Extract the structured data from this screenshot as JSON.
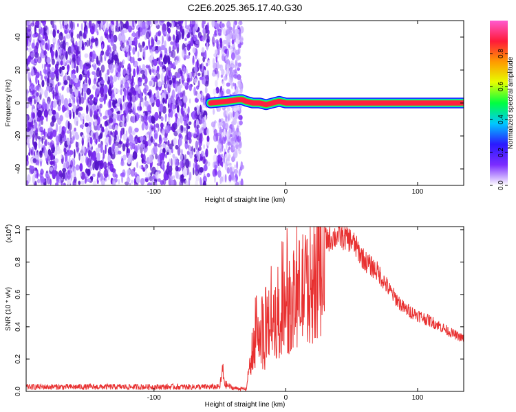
{
  "title": "C2E6.2025.365.17.40.G30",
  "chart_data": [
    {
      "type": "heatmap",
      "xlabel": "Height of straight line (km)",
      "ylabel": "Frequency (Hz)",
      "xlim": [
        -197,
        135
      ],
      "ylim": [
        -50,
        50
      ],
      "xticks": [
        -100,
        0,
        100
      ],
      "xtick_labels": [
        "-100",
        "0",
        "100"
      ],
      "yticks": [
        -40,
        -20,
        0,
        20,
        40
      ],
      "ytick_labels": [
        "-40",
        "-20",
        "0",
        "20",
        "40"
      ],
      "colorbar": {
        "label": "Normalized spectral amplitude",
        "range": [
          0,
          1
        ],
        "ticks": [
          0.0,
          0.2,
          0.4,
          0.6,
          0.8
        ],
        "tick_labels": [
          "0.0",
          "0.2",
          "0.4",
          "0.6",
          "0.8"
        ],
        "colors": [
          "#ffffff",
          "#7b2cff",
          "#2a1aff",
          "#00c8ff",
          "#00ff40",
          "#e6ff00",
          "#ff9a00",
          "#ff1a3a",
          "#ff5ad0"
        ]
      },
      "features": {
        "noise_region_km": [
          -197,
          -33
        ],
        "gap_km": [
          -58,
          -55
        ],
        "noise_color": "#6a1be0",
        "signal_trace": [
          [
            -57,
            0
          ],
          [
            -45,
            1
          ],
          [
            -36,
            2
          ],
          [
            -33,
            2
          ],
          [
            -30,
            1
          ],
          [
            -25,
            0
          ],
          [
            -20,
            0
          ],
          [
            -15,
            -1
          ],
          [
            -10,
            0
          ],
          [
            -5,
            1
          ],
          [
            0,
            0
          ],
          [
            135,
            0
          ]
        ],
        "line_band_hz": [
          -2,
          2
        ]
      }
    },
    {
      "type": "line",
      "xlabel": "Height of straight line (km)",
      "ylabel": "SNR (10 * v/v)",
      "yscale_label": "(x10",
      "yscale_exp": "4",
      "yscale_close": ")",
      "xlim": [
        -197,
        135
      ],
      "ylim": [
        0,
        1.02
      ],
      "xticks": [
        -100,
        0,
        100
      ],
      "xtick_labels": [
        "-100",
        "0",
        "100"
      ],
      "yticks": [
        0.0,
        0.2,
        0.4,
        0.6,
        0.8,
        1.0
      ],
      "ytick_labels": [
        "0.0",
        "0.2",
        "0.4",
        "0.6",
        "0.8",
        "1.0"
      ],
      "line_color": "#e83030",
      "envelope": [
        [
          -197,
          0.04
        ],
        [
          -50,
          0.04
        ],
        [
          -48,
          0.18
        ],
        [
          -46,
          0.06
        ],
        [
          -40,
          0.03
        ],
        [
          -30,
          0.02
        ],
        [
          -25,
          0.35
        ],
        [
          -15,
          0.55
        ],
        [
          -5,
          0.55
        ],
        [
          10,
          0.8
        ],
        [
          20,
          0.88
        ],
        [
          30,
          0.95
        ],
        [
          40,
          0.98
        ],
        [
          50,
          0.95
        ],
        [
          60,
          0.82
        ],
        [
          70,
          0.75
        ],
        [
          80,
          0.62
        ],
        [
          90,
          0.52
        ],
        [
          100,
          0.48
        ],
        [
          115,
          0.42
        ],
        [
          125,
          0.37
        ],
        [
          135,
          0.33
        ]
      ]
    }
  ]
}
